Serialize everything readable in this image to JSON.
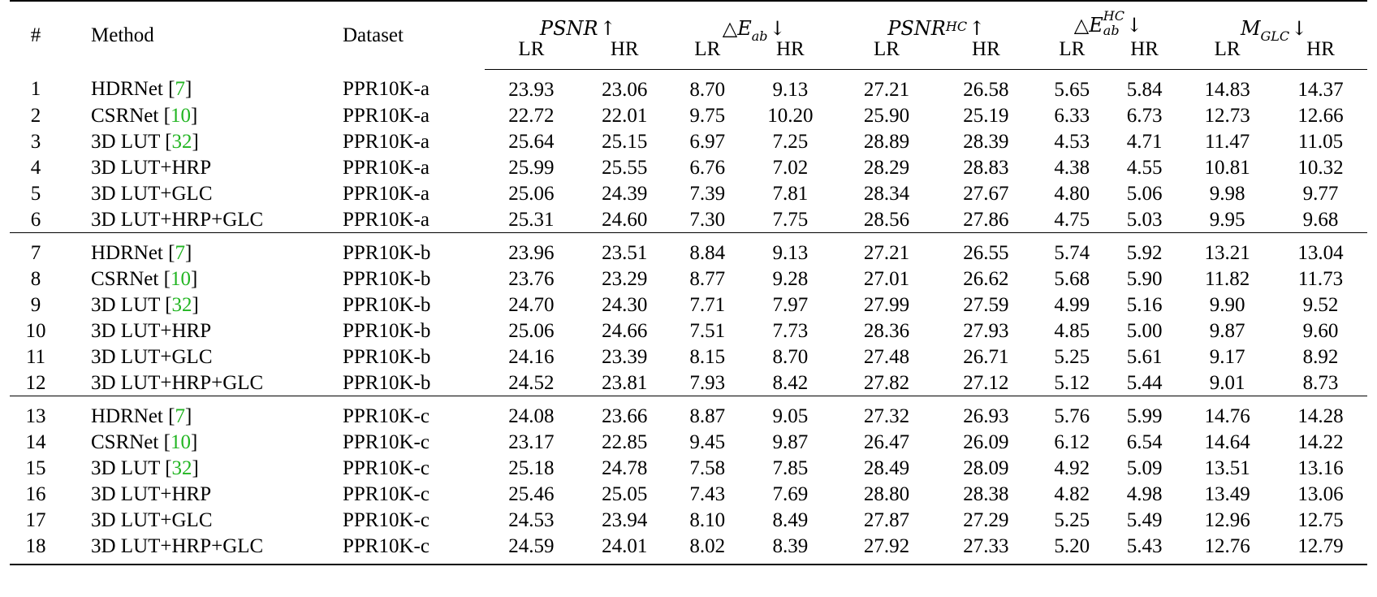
{
  "header": {
    "idx": "#",
    "method": "Method",
    "dataset": "Dataset",
    "metrics": [
      {
        "name": "PSNR",
        "sup": "",
        "sub": "",
        "arrow": "↑",
        "symbol": ""
      },
      {
        "name": "E",
        "sup": "",
        "sub": "ab",
        "arrow": "↓",
        "symbol": "△"
      },
      {
        "name": "PSNR",
        "sup": "HC",
        "sub": "",
        "arrow": "↑",
        "symbol": ""
      },
      {
        "name": "E",
        "sup": "HC",
        "sub": "ab",
        "arrow": "↓",
        "symbol": "△"
      },
      {
        "name": "M",
        "sup": "",
        "sub": "GLC",
        "arrow": "↓",
        "symbol": ""
      }
    ],
    "sub_labels": [
      "LR",
      "HR",
      "LR",
      "HR",
      "LR",
      "HR",
      "LR",
      "HR",
      "LR",
      "HR"
    ]
  },
  "groups": [
    {
      "rows": [
        {
          "idx": "1",
          "method": "HDRNet",
          "ref": "7",
          "dataset": "PPR10K-a",
          "values": [
            "23.93",
            "23.06",
            "8.70",
            "9.13",
            "27.21",
            "26.58",
            "5.65",
            "5.84",
            "14.83",
            "14.37"
          ],
          "bold": []
        },
        {
          "idx": "2",
          "method": "CSRNet",
          "ref": "10",
          "dataset": "PPR10K-a",
          "values": [
            "22.72",
            "22.01",
            "9.75",
            "10.20",
            "25.90",
            "25.19",
            "6.33",
            "6.73",
            "12.73",
            "12.66"
          ],
          "bold": []
        },
        {
          "idx": "3",
          "method": "3D LUT",
          "ref": "32",
          "dataset": "PPR10K-a",
          "values": [
            "25.64",
            "25.15",
            "6.97",
            "7.25",
            "28.89",
            "28.39",
            "4.53",
            "4.71",
            "11.47",
            "11.05"
          ],
          "bold": [
            4
          ]
        },
        {
          "idx": "4",
          "method": "3D LUT+HRP",
          "ref": "",
          "dataset": "PPR10K-a",
          "values": [
            "25.99",
            "25.55",
            "6.76",
            "7.02",
            "28.29",
            "28.83",
            "4.38",
            "4.55",
            "10.81",
            "10.32"
          ],
          "bold": [
            0,
            1,
            2,
            3,
            5,
            6,
            7
          ]
        },
        {
          "idx": "5",
          "method": "3D LUT+GLC",
          "ref": "",
          "dataset": "PPR10K-a",
          "values": [
            "25.06",
            "24.39",
            "7.39",
            "7.81",
            "28.34",
            "27.67",
            "4.80",
            "5.06",
            "9.98",
            "9.77"
          ],
          "bold": []
        },
        {
          "idx": "6",
          "method": "3D LUT+HRP+GLC",
          "ref": "",
          "dataset": "PPR10K-a",
          "values": [
            "25.31",
            "24.60",
            "7.30",
            "7.75",
            "28.56",
            "27.86",
            "4.75",
            "5.03",
            "9.95",
            "9.68"
          ],
          "bold": [
            8,
            9
          ]
        }
      ]
    },
    {
      "rows": [
        {
          "idx": "7",
          "method": "HDRNet",
          "ref": "7",
          "dataset": "PPR10K-b",
          "values": [
            "23.96",
            "23.51",
            "8.84",
            "9.13",
            "27.21",
            "26.55",
            "5.74",
            "5.92",
            "13.21",
            "13.04"
          ],
          "bold": []
        },
        {
          "idx": "8",
          "method": "CSRNet",
          "ref": "10",
          "dataset": "PPR10K-b",
          "values": [
            "23.76",
            "23.29",
            "8.77",
            "9.28",
            "27.01",
            "26.62",
            "5.68",
            "5.90",
            "11.82",
            "11.73"
          ],
          "bold": []
        },
        {
          "idx": "9",
          "method": "3D LUT",
          "ref": "32",
          "dataset": "PPR10K-b",
          "values": [
            "24.70",
            "24.30",
            "7.71",
            "7.97",
            "27.99",
            "27.59",
            "4.99",
            "5.16",
            "9.90",
            "9.52"
          ],
          "bold": []
        },
        {
          "idx": "10",
          "method": "3D LUT+HRP",
          "ref": "",
          "dataset": "PPR10K-b",
          "values": [
            "25.06",
            "24.66",
            "7.51",
            "7.73",
            "28.36",
            "27.93",
            "4.85",
            "5.00",
            "9.87",
            "9.60"
          ],
          "bold": [
            0,
            1,
            2,
            3,
            4,
            5,
            6,
            7
          ]
        },
        {
          "idx": "11",
          "method": "3D LUT+GLC",
          "ref": "",
          "dataset": "PPR10K-b",
          "values": [
            "24.16",
            "23.39",
            "8.15",
            "8.70",
            "27.48",
            "26.71",
            "5.25",
            "5.61",
            "9.17",
            "8.92"
          ],
          "bold": []
        },
        {
          "idx": "12",
          "method": "3D LUT+HRP+GLC",
          "ref": "",
          "dataset": "PPR10K-b",
          "values": [
            "24.52",
            "23.81",
            "7.93",
            "8.42",
            "27.82",
            "27.12",
            "5.12",
            "5.44",
            "9.01",
            "8.73"
          ],
          "bold": [
            8,
            9
          ]
        }
      ]
    },
    {
      "rows": [
        {
          "idx": "13",
          "method": "HDRNet",
          "ref": "7",
          "dataset": "PPR10K-c",
          "values": [
            "24.08",
            "23.66",
            "8.87",
            "9.05",
            "27.32",
            "26.93",
            "5.76",
            "5.99",
            "14.76",
            "14.28"
          ],
          "bold": []
        },
        {
          "idx": "14",
          "method": "CSRNet",
          "ref": "10",
          "dataset": "PPR10K-c",
          "values": [
            "23.17",
            "22.85",
            "9.45",
            "9.87",
            "26.47",
            "26.09",
            "6.12",
            "6.54",
            "14.64",
            "14.22"
          ],
          "bold": []
        },
        {
          "idx": "15",
          "method": "3D LUT",
          "ref": "32",
          "dataset": "PPR10K-c",
          "values": [
            "25.18",
            "24.78",
            "7.58",
            "7.85",
            "28.49",
            "28.09",
            "4.92",
            "5.09",
            "13.51",
            "13.16"
          ],
          "bold": []
        },
        {
          "idx": "16",
          "method": "3D LUT+HRP",
          "ref": "",
          "dataset": "PPR10K-c",
          "values": [
            "25.46",
            "25.05",
            "7.43",
            "7.69",
            "28.80",
            "28.38",
            "4.82",
            "4.98",
            "13.49",
            "13.06"
          ],
          "bold": [
            0,
            1,
            2,
            3,
            4,
            5,
            6,
            7
          ]
        },
        {
          "idx": "17",
          "method": "3D LUT+GLC",
          "ref": "",
          "dataset": "PPR10K-c",
          "values": [
            "24.53",
            "23.94",
            "8.10",
            "8.49",
            "27.87",
            "27.29",
            "5.25",
            "5.49",
            "12.96",
            "12.75"
          ],
          "bold": [
            9
          ]
        },
        {
          "idx": "18",
          "method": "3D LUT+HRP+GLC",
          "ref": "",
          "dataset": "PPR10K-c",
          "values": [
            "24.59",
            "24.01",
            "8.02",
            "8.39",
            "27.92",
            "27.33",
            "5.20",
            "5.43",
            "12.76",
            "12.79"
          ],
          "bold": [
            8
          ]
        }
      ]
    }
  ],
  "colors": {
    "reference": "#22b522",
    "text": "#000000",
    "background": "#ffffff"
  }
}
